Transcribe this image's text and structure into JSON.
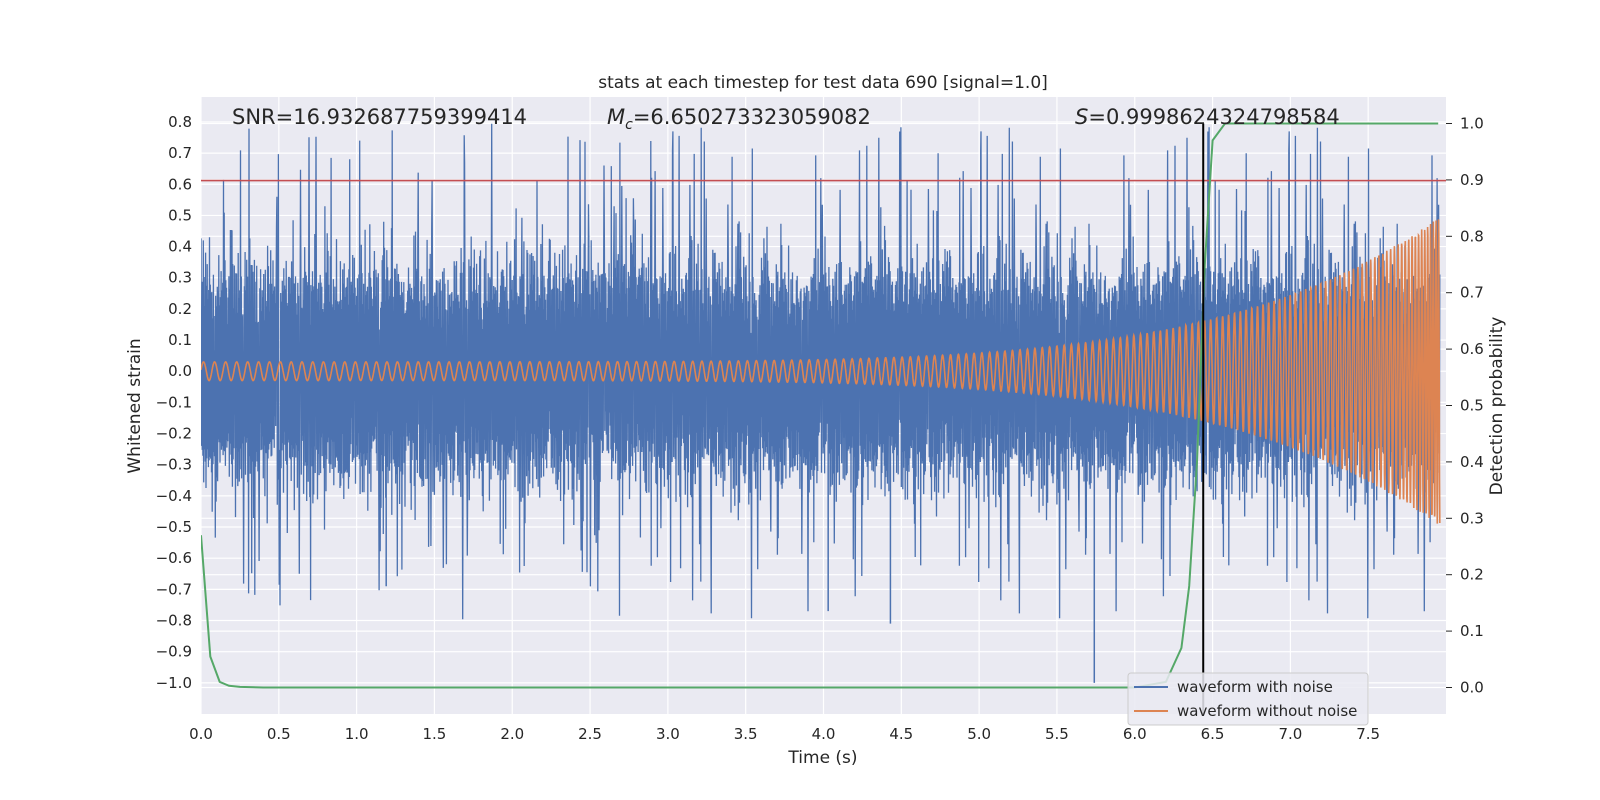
{
  "chart_data": {
    "type": "line",
    "title": "stats at each timestep for test data 690 [signal=1.0]",
    "xlabel": "Time (s)",
    "ylabel": "Whitened strain",
    "y2label": "Detection probability",
    "xlim": [
      0.0,
      8.0
    ],
    "ylim": [
      -1.1,
      0.88
    ],
    "y2lim": [
      -0.047,
      1.047
    ],
    "x_ticks": [
      "0.0",
      "0.5",
      "1.0",
      "1.5",
      "2.0",
      "2.5",
      "3.0",
      "3.5",
      "4.0",
      "4.5",
      "5.0",
      "5.5",
      "6.0",
      "6.5",
      "7.0",
      "7.5"
    ],
    "y_ticks": [
      "0.8",
      "0.7",
      "0.6",
      "0.5",
      "0.4",
      "0.3",
      "0.2",
      "0.1",
      "0.0",
      "−0.1",
      "−0.2",
      "−0.3",
      "−0.4",
      "−0.5",
      "−0.6",
      "−0.7",
      "−0.8",
      "−0.9",
      "−1.0"
    ],
    "y2_ticks": [
      "1.0",
      "0.9",
      "0.8",
      "0.7",
      "0.6",
      "0.5",
      "0.4",
      "0.3",
      "0.2",
      "0.1",
      "0.0"
    ],
    "annotations": {
      "snr": "SNR=16.932687759399414",
      "mc_symbol": "M",
      "mc_sub": "c",
      "mc_value": "=6.650273323059082",
      "s_symbol": "S",
      "s_value": "=0.9998624324798584"
    },
    "threshold_line": {
      "y": 0.612,
      "color": "#c44e52"
    },
    "vertical_line": {
      "x": 6.44,
      "color": "#000000"
    },
    "series": [
      {
        "name": "waveform with noise",
        "color": "#4c72b0",
        "amplitude_envelope": [
          0.45,
          0.8
        ]
      },
      {
        "name": "waveform without noise",
        "color": "#dd8452",
        "amplitude_start": 0.03,
        "amplitude_end": 0.55
      },
      {
        "color": "#55a868",
        "axis": "right",
        "x": [
          0.0,
          0.06,
          0.12,
          0.18,
          0.25,
          0.4,
          0.6,
          1.0,
          6.0,
          6.2,
          6.3,
          6.35,
          6.4,
          6.45,
          6.5,
          6.58,
          6.65,
          7.0,
          7.95
        ],
        "y": [
          0.27,
          0.055,
          0.01,
          0.003,
          0.001,
          0.0,
          0.0,
          0.0,
          0.0,
          0.01,
          0.07,
          0.18,
          0.4,
          0.75,
          0.97,
          1.0,
          1.0,
          1.0,
          1.0
        ]
      }
    ],
    "legend": {
      "placement": "lower-right",
      "entries": [
        "waveform with noise",
        "waveform without noise"
      ]
    },
    "grid": true,
    "background": "#eaeaf2"
  }
}
